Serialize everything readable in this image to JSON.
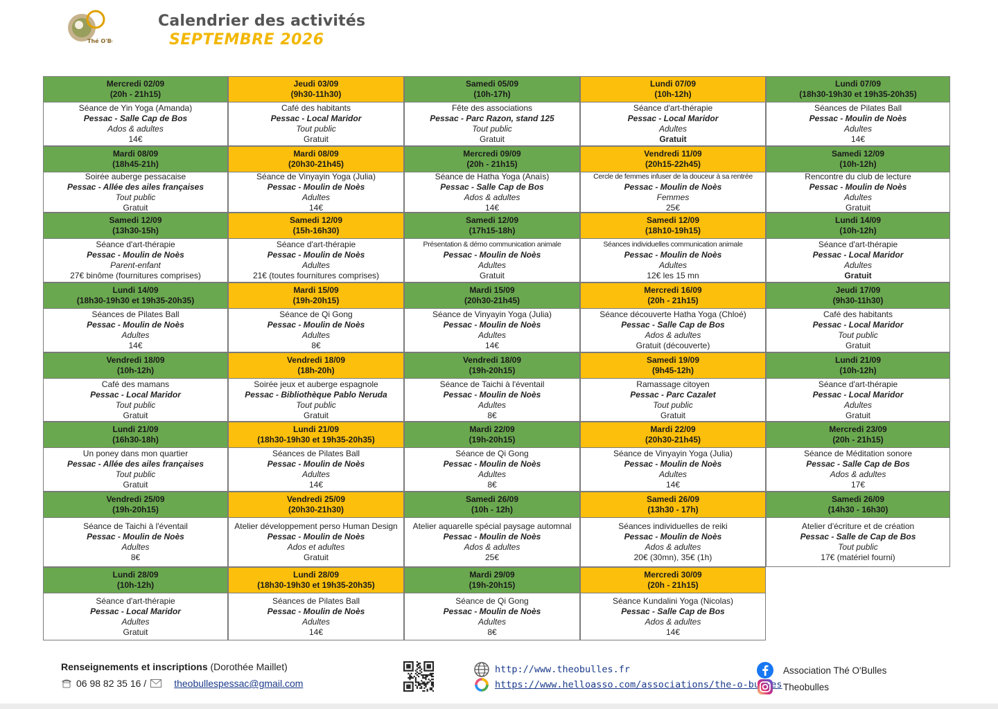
{
  "header": {
    "title": "Calendrier des activités",
    "subtitle": "SEPTEMBRE 2026",
    "logo_text": "Thé O'Bulles"
  },
  "colors": {
    "green": "#6aa84f",
    "orange": "#fbbf0c",
    "title_gray": "#555555",
    "subtitle_gold": "#f2b705"
  },
  "events": [
    {
      "day": "Mercredi 02/09",
      "time": "(20h - 21h15)",
      "title": "Séance de Yin Yoga (Amanda)",
      "place": "Pessac - Salle Cap de Bos",
      "audience": "Ados & adultes",
      "price": "14€"
    },
    {
      "day": "Jeudi 03/09",
      "time": "(9h30-11h30)",
      "title": "Café des habitants",
      "place": "Pessac - Local Maridor",
      "audience": "Tout public",
      "price": "Gratuit"
    },
    {
      "day": "Samedi 05/09",
      "time": "(10h-17h)",
      "title": "Fête des associations",
      "place": "Pessac - Parc Razon, stand 125",
      "audience": "Tout public",
      "price": "Gratuit"
    },
    {
      "day": "Lundi 07/09",
      "time": "(10h-12h)",
      "title": "Séance d'art-thérapie",
      "place": "Pessac - Local Maridor",
      "audience": "Adultes",
      "price": "Gratuit"
    },
    {
      "day": "Lundi 07/09",
      "time": "(18h30-19h30 et 19h35-20h35)",
      "title": "Séances de Pilates Ball",
      "place": "Pessac - Moulin de Noès",
      "audience": "Adultes",
      "price": "14€"
    },
    {
      "day": "Mardi 08/09",
      "time": "(18h45-21h)",
      "title": "Soirée auberge pessacaise",
      "place": "Pessac - Allée des ailes françaises",
      "audience": "Tout public",
      "price": "Gratuit"
    },
    {
      "day": "Mardi 08/09",
      "time": "(20h30-21h45)",
      "title": "Séance de Vinyayin Yoga (Julia)",
      "place": "Pessac - Moulin de Noès",
      "audience": "Adultes",
      "price": "14€"
    },
    {
      "day": "Mercredi 09/09",
      "time": "(20h - 21h15)",
      "title": "Séance de Hatha Yoga (Anaïs)",
      "place": "Pessac - Salle Cap de Bos",
      "audience": "Ados & adultes",
      "price": "14€"
    },
    {
      "day": "Vendredi 11/09",
      "time": "(20h15-22h45)",
      "title": "Cercle de femmes infuser de la douceur à sa rentrée",
      "place": "Pessac - Moulin de Noès",
      "audience": "Femmes",
      "price": "25€"
    },
    {
      "day": "Samedi 12/09",
      "time": "(10h-12h)",
      "title": "Rencontre du club de lecture",
      "place": "Pessac - Moulin de Noès",
      "audience": "Adultes",
      "price": "Gratuit"
    },
    {
      "day": "Samedi 12/09",
      "time": "(13h30-15h)",
      "title": "Séance d'art-thérapie",
      "place": "Pessac - Moulin de Noès",
      "audience": "Parent-enfant",
      "price": "27€ binôme (fournitures comprises)"
    },
    {
      "day": "Samedi 12/09",
      "time": "(15h-16h30)",
      "title": "Séance d'art-thérapie",
      "place": "Pessac - Moulin de Noès",
      "audience": "Adultes",
      "price": "21€ (toutes fournitures comprises)"
    },
    {
      "day": "Samedi 12/09",
      "time": "(17h15-18h)",
      "title": "Présentation & démo communication animale",
      "place": "Pessac - Moulin de Noès",
      "audience": "Adultes",
      "price": "Gratuit"
    },
    {
      "day": "Samedi 12/09",
      "time": "(18h10-19h15)",
      "title": "Séances individuelles communication animale",
      "place": "Pessac - Moulin de Noès",
      "audience": "Adultes",
      "price": "12€ les 15 mn"
    },
    {
      "day": "Lundi 14/09",
      "time": "(10h-12h)",
      "title": "Séance d'art-thérapie",
      "place": "Pessac - Local Maridor",
      "audience": "Adultes",
      "price": "Gratuit"
    },
    {
      "day": "Lundi 14/09",
      "time": "(18h30-19h30 et 19h35-20h35)",
      "title": "Séances de Pilates Ball",
      "place": "Pessac - Moulin de Noès",
      "audience": "Adultes",
      "price": "14€"
    },
    {
      "day": "Mardi 15/09",
      "time": "(19h-20h15)",
      "title": "Séance de Qi Gong",
      "place": "Pessac - Moulin de Noès",
      "audience": "Adultes",
      "price": "8€"
    },
    {
      "day": "Mardi 15/09",
      "time": "(20h30-21h45)",
      "title": "Séance de Vinyayin Yoga (Julia)",
      "place": "Pessac - Moulin de Noès",
      "audience": "Adultes",
      "price": "14€"
    },
    {
      "day": "Mercredi 16/09",
      "time": "(20h - 21h15)",
      "title": "Séance découverte Hatha Yoga (Chloé)",
      "place": "Pessac - Salle Cap de Bos",
      "audience": "Ados & adultes",
      "price": "Gratuit (découverte)"
    },
    {
      "day": "Jeudi 17/09",
      "time": "(9h30-11h30)",
      "title": "Café des habitants",
      "place": "Pessac - Local Maridor",
      "audience": "Tout public",
      "price": "Gratuit"
    },
    {
      "day": "Vendredi 18/09",
      "time": "(10h-12h)",
      "title": "Café des mamans",
      "place": "Pessac - Local Maridor",
      "audience": "Tout public",
      "price": "Gratuit"
    },
    {
      "day": "Vendredi 18/09",
      "time": "(18h-20h)",
      "title": "Soirée jeux et auberge espagnole",
      "place": "Pessac - Bibliothèque Pablo Neruda",
      "audience": "Tout public",
      "price": "Gratuit"
    },
    {
      "day": "Vendredi 18/09",
      "time": "(19h-20h15)",
      "title": "Séance de Taichi à l'éventail",
      "place": "Pessac - Moulin de Noès",
      "audience": "Adultes",
      "price": "8€"
    },
    {
      "day": "Samedi 19/09",
      "time": "(9h45-12h)",
      "title": "Ramassage citoyen",
      "place": "Pessac - Parc Cazalet",
      "audience": "Tout public",
      "price": "Gratuit"
    },
    {
      "day": "Lundi 21/09",
      "time": "(10h-12h)",
      "title": "Séance d'art-thérapie",
      "place": "Pessac - Local Maridor",
      "audience": "Adultes",
      "price": "Gratuit"
    },
    {
      "day": "Lundi 21/09",
      "time": "(16h30-18h)",
      "title": "Un poney dans mon quartier",
      "place": "Pessac - Allée des ailes françaises",
      "audience": "Tout public",
      "price": "Gratuit"
    },
    {
      "day": "Lundi 21/09",
      "time": "(18h30-19h30 et 19h35-20h35)",
      "title": "Séances de Pilates Ball",
      "place": "Pessac - Moulin de Noès",
      "audience": "Adultes",
      "price": "14€"
    },
    {
      "day": "Mardi 22/09",
      "time": "(19h-20h15)",
      "title": "Séance de Qi Gong",
      "place": "Pessac - Moulin de Noès",
      "audience": "Adultes",
      "price": "8€"
    },
    {
      "day": "Mardi 22/09",
      "time": "(20h30-21h45)",
      "title": "Séance de Vinyayin Yoga (Julia)",
      "place": "Pessac - Moulin de Noès",
      "audience": "Adultes",
      "price": "14€"
    },
    {
      "day": "Mercredi 23/09",
      "time": "(20h - 21h15)",
      "title": "Séance de Méditation sonore",
      "place": "Pessac - Salle Cap de Bos",
      "audience": "Ados & adultes",
      "price": "17€"
    },
    {
      "day": "Vendredi 25/09",
      "time": "(19h-20h15)",
      "title": "Séance de Taichi à l'éventail",
      "place": "Pessac - Moulin de Noès",
      "audience": "Adultes",
      "price": "8€"
    },
    {
      "day": "Vendredi 25/09",
      "time": "(20h30-21h30)",
      "title": "Atelier développement perso Human Design",
      "place": "Pessac - Moulin de Noès",
      "audience": "Ados et adultes",
      "price": "Gratuit"
    },
    {
      "day": "Samedi 26/09",
      "time": "(10h - 12h)",
      "title": "Atelier aquarelle spécial paysage automnal",
      "place": "Pessac - Moulin de Noès",
      "audience": "Ados & adultes",
      "price": "25€"
    },
    {
      "day": "Samedi 26/09",
      "time": "(13h30 - 17h)",
      "title": "Séances individuelles de reiki",
      "place": "Pessac - Moulin de Noès",
      "audience": "Ados & adultes",
      "price": "20€ (30mn), 35€ (1h)"
    },
    {
      "day": "Samedi 26/09",
      "time": "(14h30 - 16h30)",
      "title": "Atelier d'écriture et de création",
      "place": "Pessac - Salle de Cap de Bos",
      "audience": "Tout public",
      "price": "17€ (matériel fourni)"
    },
    {
      "day": "Lundi 28/09",
      "time": "(10h-12h)",
      "title": "Séance d'art-thérapie",
      "place": "Pessac - Local Maridor",
      "audience": "Adultes",
      "price": "Gratuit"
    },
    {
      "day": "Lundi 28/09",
      "time": "(18h30-19h30 et 19h35-20h35)",
      "title": "Séances de Pilates Ball",
      "place": "Pessac - Moulin de Noès",
      "audience": "Adultes",
      "price": "14€"
    },
    {
      "day": "Mardi 29/09",
      "time": "(19h-20h15)",
      "title": "Séance de Qi Gong",
      "place": "Pessac - Moulin de Noès",
      "audience": "Adultes",
      "price": "8€"
    },
    {
      "day": "Mercredi 30/09",
      "time": "(20h - 21h15)",
      "title": "Séance Kundalini Yoga (Nicolas)",
      "place": "Pessac - Salle Cap de Bos",
      "audience": "Ados & adultes",
      "price": "14€"
    }
  ],
  "footer": {
    "contact_label": "Renseignements et inscriptions",
    "contact_name": "(Dorothée Maillet)",
    "phone": "06 98 82 35 16 /",
    "email": "theobullespessac@gmail.com",
    "website": "http://www.theobulles.fr",
    "helloasso": "https://www.helloasso.com/associations/the-o-bulles",
    "facebook": "Association Thé O'Bulles",
    "instagram": "Theobulles",
    "icons": [
      "phone-icon",
      "mail-icon",
      "qr-code",
      "globe-icon",
      "helloasso-icon",
      "facebook-icon",
      "instagram-icon"
    ]
  }
}
